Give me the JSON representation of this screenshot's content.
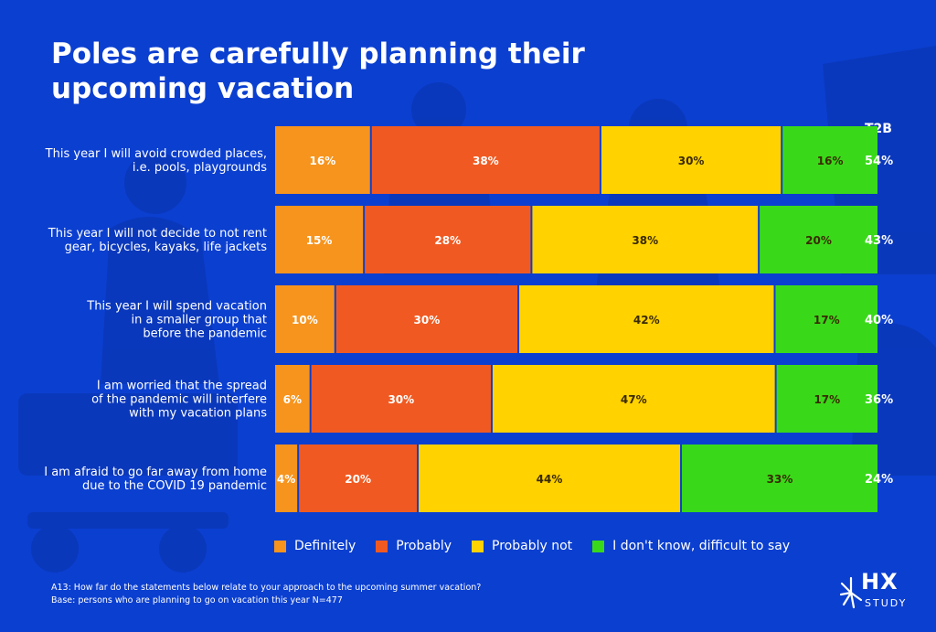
{
  "title": "Poles are carefully planning their upcoming vacation",
  "t2b_header": "T2B",
  "footnote": {
    "question": "A13: How far do the statements below relate to your approach to the upcoming summer vacation?",
    "base": "Base: persons who are planning to go on vacation this year N=477"
  },
  "logo": {
    "main": "HX",
    "sub": "STUDY"
  },
  "colors": {
    "background": "#0b3fd0",
    "definitely": "#f7941d",
    "probably": "#f05a22",
    "probably_not": "#ffd200",
    "dont_know": "#39d91a"
  },
  "chart_data": {
    "type": "bar",
    "orientation": "horizontal",
    "stacked": true,
    "categories": [
      [
        "This year I will avoid crowded places,",
        "i.e. pools, playgrounds"
      ],
      [
        "This year I will not decide to not rent",
        "gear, bicycles, kayaks, life jackets"
      ],
      [
        "This year I will spend vacation",
        "in a smaller group that",
        "before the pandemic"
      ],
      [
        "I am worried that the spread",
        "of the pandemic will interfere",
        "with my vacation plans"
      ],
      [
        "I am afraid to go far away from home",
        "due to the COVID 19 pandemic"
      ]
    ],
    "series": [
      {
        "name": "Definitely",
        "color": "#f7941d",
        "values": [
          16,
          15,
          10,
          6,
          4
        ]
      },
      {
        "name": "Probably",
        "color": "#f05a22",
        "values": [
          38,
          28,
          30,
          30,
          20
        ]
      },
      {
        "name": "Probably not",
        "color": "#ffd200",
        "values": [
          30,
          38,
          42,
          47,
          44
        ]
      },
      {
        "name": "I don't know, difficult to say",
        "color": "#39d91a",
        "values": [
          16,
          20,
          17,
          17,
          33
        ]
      }
    ],
    "t2b": [
      "54%",
      "43%",
      "40%",
      "36%",
      "24%"
    ],
    "legend_position": "bottom",
    "grid": false,
    "value_suffix": "%"
  }
}
